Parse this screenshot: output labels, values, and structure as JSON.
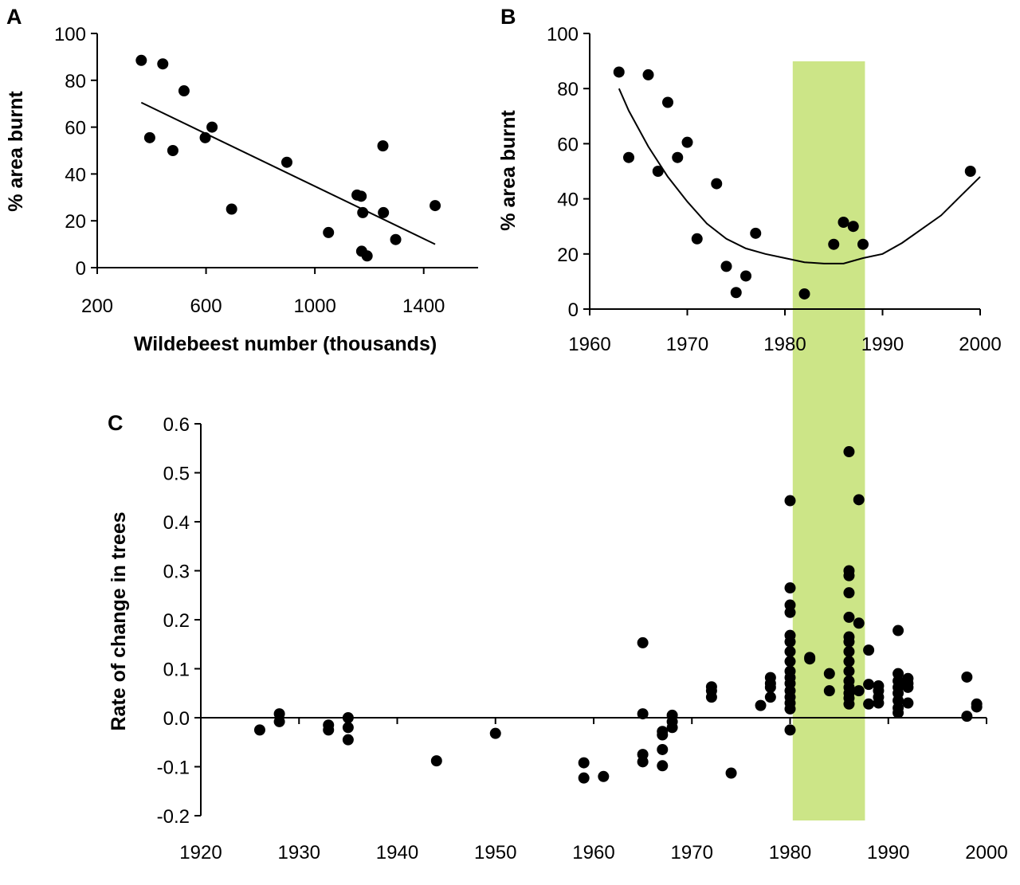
{
  "chart_data": [
    {
      "panel": "A",
      "type": "scatter",
      "xlabel": "Wildebeest number (thousands)",
      "ylabel": "% area burnt",
      "xlim": [
        200,
        1600
      ],
      "ylim": [
        0,
        100
      ],
      "xticks": [
        200,
        600,
        1000,
        1400
      ],
      "yticks": [
        0,
        20,
        40,
        60,
        80,
        100
      ],
      "points": [
        [
          362,
          88.5
        ],
        [
          393,
          55.5
        ],
        [
          441,
          87
        ],
        [
          478,
          50
        ],
        [
          519,
          75.5
        ],
        [
          597,
          55.5
        ],
        [
          622,
          60
        ],
        [
          694,
          25
        ],
        [
          897,
          45
        ],
        [
          1050,
          15
        ],
        [
          1155,
          31
        ],
        [
          1170,
          30.5
        ],
        [
          1172,
          7
        ],
        [
          1176,
          23.5
        ],
        [
          1192,
          5
        ],
        [
          1250,
          52
        ],
        [
          1252,
          23.5
        ],
        [
          1297,
          12
        ],
        [
          1442,
          26.5
        ]
      ],
      "trendline": [
        [
          362,
          70.5
        ],
        [
          1442,
          10
        ]
      ]
    },
    {
      "panel": "B",
      "type": "scatter",
      "xlabel": "",
      "ylabel": "% area burnt",
      "xlim": [
        1960,
        2000
      ],
      "ylim": [
        0,
        100
      ],
      "xticks": [
        1960,
        1970,
        1980,
        1990,
        2000
      ],
      "yticks": [
        0,
        20,
        40,
        60,
        80,
        100
      ],
      "highlight_band": [
        1980.8,
        1988.2
      ],
      "points": [
        [
          1963,
          86
        ],
        [
          1964,
          55
        ],
        [
          1966,
          85
        ],
        [
          1967,
          50
        ],
        [
          1968,
          75
        ],
        [
          1969,
          55
        ],
        [
          1970,
          60.5
        ],
        [
          1971,
          25.5
        ],
        [
          1973,
          45.5
        ],
        [
          1974,
          15.5
        ],
        [
          1975,
          6
        ],
        [
          1976,
          12
        ],
        [
          1977,
          27.5
        ],
        [
          1982,
          5.5
        ],
        [
          1985,
          23.5
        ],
        [
          1986,
          31.5
        ],
        [
          1987,
          30
        ],
        [
          1988,
          23.5
        ],
        [
          1999,
          50
        ]
      ],
      "curve": [
        [
          1963,
          80
        ],
        [
          1964,
          72
        ],
        [
          1966,
          59
        ],
        [
          1968,
          48
        ],
        [
          1970,
          39
        ],
        [
          1972,
          31
        ],
        [
          1974,
          25.5
        ],
        [
          1976,
          22
        ],
        [
          1978,
          20
        ],
        [
          1980,
          18.5
        ],
        [
          1982,
          17
        ],
        [
          1984,
          16.5
        ],
        [
          1986,
          16.5
        ],
        [
          1988,
          18.5
        ],
        [
          1990,
          20
        ],
        [
          1992,
          24
        ],
        [
          1994,
          29
        ],
        [
          1996,
          34
        ],
        [
          1998,
          41
        ],
        [
          2000,
          48
        ]
      ]
    },
    {
      "panel": "C",
      "type": "scatter",
      "xlabel": "",
      "ylabel": "Rate of change in  trees",
      "xlim": [
        1920,
        2000
      ],
      "ylim": [
        -0.2,
        0.6
      ],
      "xticks": [
        1920,
        1930,
        1940,
        1950,
        1960,
        1970,
        1980,
        1990,
        2000
      ],
      "yticks": [
        -0.2,
        -0.1,
        0.0,
        0.1,
        0.2,
        0.3,
        0.4,
        0.5,
        0.6
      ],
      "ytick_labels": [
        "-0.2",
        "-0.1",
        "0.0",
        "0.1",
        "0.2",
        "0.3",
        "0.4",
        "0.5",
        "0.6"
      ],
      "highlight_band": [
        1980,
        1987.3
      ],
      "points": [
        [
          1926,
          -0.025
        ],
        [
          1928,
          0.008
        ],
        [
          1928,
          -0.008
        ],
        [
          1933,
          -0.015
        ],
        [
          1933,
          -0.025
        ],
        [
          1935,
          0.0
        ],
        [
          1935,
          -0.02
        ],
        [
          1935,
          -0.045
        ],
        [
          1944,
          -0.088
        ],
        [
          1950,
          -0.032
        ],
        [
          1959,
          -0.092
        ],
        [
          1959,
          -0.123
        ],
        [
          1961,
          -0.12
        ],
        [
          1965,
          0.153
        ],
        [
          1965,
          0.008
        ],
        [
          1965,
          -0.075
        ],
        [
          1965,
          -0.09
        ],
        [
          1967,
          -0.028
        ],
        [
          1967,
          -0.035
        ],
        [
          1967,
          -0.065
        ],
        [
          1967,
          -0.098
        ],
        [
          1968,
          0.005
        ],
        [
          1968,
          -0.008
        ],
        [
          1968,
          -0.02
        ],
        [
          1972,
          0.063
        ],
        [
          1972,
          0.055
        ],
        [
          1972,
          0.042
        ],
        [
          1974,
          -0.113
        ],
        [
          1977,
          0.025
        ],
        [
          1978,
          0.082
        ],
        [
          1978,
          0.07
        ],
        [
          1978,
          0.062
        ],
        [
          1978,
          0.042
        ],
        [
          1980,
          0.443
        ],
        [
          1980,
          0.265
        ],
        [
          1980,
          0.23
        ],
        [
          1980,
          0.215
        ],
        [
          1980,
          0.168
        ],
        [
          1980,
          0.155
        ],
        [
          1980,
          0.135
        ],
        [
          1980,
          0.115
        ],
        [
          1980,
          0.095
        ],
        [
          1980,
          0.082
        ],
        [
          1980,
          0.07
        ],
        [
          1980,
          0.055
        ],
        [
          1980,
          0.042
        ],
        [
          1980,
          0.03
        ],
        [
          1980,
          0.018
        ],
        [
          1980,
          -0.025
        ],
        [
          1982,
          0.123
        ],
        [
          1982,
          0.12
        ],
        [
          1984,
          0.09
        ],
        [
          1984,
          0.055
        ],
        [
          1986,
          0.543
        ],
        [
          1986,
          0.3
        ],
        [
          1986,
          0.29
        ],
        [
          1986,
          0.255
        ],
        [
          1986,
          0.205
        ],
        [
          1986,
          0.165
        ],
        [
          1986,
          0.155
        ],
        [
          1986,
          0.135
        ],
        [
          1986,
          0.115
        ],
        [
          1986,
          0.095
        ],
        [
          1986,
          0.075
        ],
        [
          1986,
          0.062
        ],
        [
          1986,
          0.05
        ],
        [
          1986,
          0.04
        ],
        [
          1986,
          0.028
        ],
        [
          1987,
          0.445
        ],
        [
          1987,
          0.193
        ],
        [
          1987,
          0.055
        ],
        [
          1988,
          0.138
        ],
        [
          1988,
          0.068
        ],
        [
          1988,
          0.028
        ],
        [
          1989,
          0.065
        ],
        [
          1989,
          0.055
        ],
        [
          1989,
          0.042
        ],
        [
          1989,
          0.03
        ],
        [
          1991,
          0.178
        ],
        [
          1991,
          0.09
        ],
        [
          1991,
          0.075
        ],
        [
          1991,
          0.062
        ],
        [
          1991,
          0.05
        ],
        [
          1991,
          0.035
        ],
        [
          1991,
          0.02
        ],
        [
          1991,
          0.01
        ],
        [
          1992,
          0.08
        ],
        [
          1992,
          0.07
        ],
        [
          1992,
          0.062
        ],
        [
          1992,
          0.03
        ],
        [
          1998,
          0.083
        ],
        [
          1998,
          0.003
        ],
        [
          1999,
          0.028
        ],
        [
          1999,
          0.022
        ]
      ]
    }
  ]
}
